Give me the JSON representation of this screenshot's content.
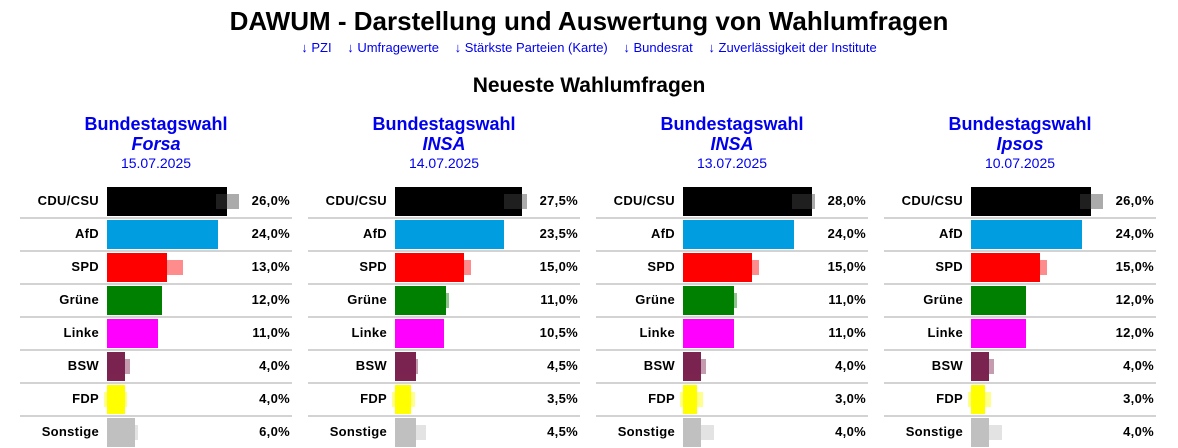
{
  "header": {
    "title": "DAWUM - Darstellung und Auswertung von Wahlumfragen",
    "nav": [
      {
        "label": "↓ PZI"
      },
      {
        "label": "↓ Umfragewerte"
      },
      {
        "label": "↓ Stärkste Parteien (Karte)"
      },
      {
        "label": "↓ Bundesrat"
      },
      {
        "label": "↓ Zuverlässigkeit der Institute"
      }
    ],
    "subtitle": "Neueste Wahlumfragen"
  },
  "colors": {
    "link": "#0000ee",
    "separator": "#d3d3d3"
  },
  "chart_data": [
    {
      "type": "bar",
      "orientation": "horizontal",
      "title": "Bundestagswahl",
      "institute": "Forsa",
      "date": "15.07.2025",
      "categories": [
        "CDU/CSU",
        "AfD",
        "SPD",
        "Grüne",
        "Linke",
        "BSW",
        "FDP",
        "Sonstige"
      ],
      "values": [
        26.0,
        24.0,
        13.0,
        12.0,
        11.0,
        4.0,
        4.0,
        6.0
      ],
      "labels": [
        "26,0%",
        "24,0%",
        "13,0%",
        "12,0%",
        "11,0%",
        "4,0%",
        "4,0%",
        "6,0%"
      ],
      "colors": [
        "#000000",
        "#009ee0",
        "#ff0000",
        "#008000",
        "#ff00ff",
        "#7b2450",
        "#ffff00",
        "#c0c0c0"
      ],
      "unit": "%"
    },
    {
      "type": "bar",
      "orientation": "horizontal",
      "title": "Bundestagswahl",
      "institute": "INSA",
      "date": "14.07.2025",
      "categories": [
        "CDU/CSU",
        "AfD",
        "SPD",
        "Grüne",
        "Linke",
        "BSW",
        "FDP",
        "Sonstige"
      ],
      "values": [
        27.5,
        23.5,
        15.0,
        11.0,
        10.5,
        4.5,
        3.5,
        4.5
      ],
      "labels": [
        "27,5%",
        "23,5%",
        "15,0%",
        "11,0%",
        "10,5%",
        "4,5%",
        "3,5%",
        "4,5%"
      ],
      "colors": [
        "#000000",
        "#009ee0",
        "#ff0000",
        "#008000",
        "#ff00ff",
        "#7b2450",
        "#ffff00",
        "#c0c0c0"
      ],
      "unit": "%"
    },
    {
      "type": "bar",
      "orientation": "horizontal",
      "title": "Bundestagswahl",
      "institute": "INSA",
      "date": "13.07.2025",
      "categories": [
        "CDU/CSU",
        "AfD",
        "SPD",
        "Grüne",
        "Linke",
        "BSW",
        "FDP",
        "Sonstige"
      ],
      "values": [
        28.0,
        24.0,
        15.0,
        11.0,
        11.0,
        4.0,
        3.0,
        4.0
      ],
      "labels": [
        "28,0%",
        "24,0%",
        "15,0%",
        "11,0%",
        "11,0%",
        "4,0%",
        "3,0%",
        "4,0%"
      ],
      "colors": [
        "#000000",
        "#009ee0",
        "#ff0000",
        "#008000",
        "#ff00ff",
        "#7b2450",
        "#ffff00",
        "#c0c0c0"
      ],
      "unit": "%"
    },
    {
      "type": "bar",
      "orientation": "horizontal",
      "title": "Bundestagswahl",
      "institute": "Ipsos",
      "date": "10.07.2025",
      "categories": [
        "CDU/CSU",
        "AfD",
        "SPD",
        "Grüne",
        "Linke",
        "BSW",
        "FDP",
        "Sonstige"
      ],
      "values": [
        26.0,
        24.0,
        15.0,
        12.0,
        12.0,
        4.0,
        3.0,
        4.0
      ],
      "labels": [
        "26,0%",
        "24,0%",
        "15,0%",
        "12,0%",
        "12,0%",
        "4,0%",
        "3,0%",
        "4,0%"
      ],
      "colors": [
        "#000000",
        "#009ee0",
        "#ff0000",
        "#008000",
        "#ff00ff",
        "#7b2450",
        "#ffff00",
        "#c0c0c0"
      ],
      "unit": "%"
    }
  ]
}
